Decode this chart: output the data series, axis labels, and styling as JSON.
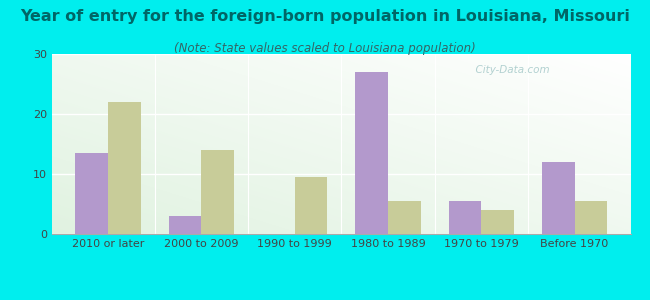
{
  "title": "Year of entry for the foreign-born population in Louisiana, Missouri",
  "subtitle": "(Note: State values scaled to Louisiana population)",
  "categories": [
    "2010 or later",
    "2000 to 2009",
    "1990 to 1999",
    "1980 to 1989",
    "1970 to 1979",
    "Before 1970"
  ],
  "louisiana_values": [
    13.5,
    3.0,
    0,
    27.0,
    5.5,
    12.0
  ],
  "missouri_values": [
    22.0,
    14.0,
    9.5,
    5.5,
    4.0,
    5.5
  ],
  "louisiana_color": "#b399cc",
  "missouri_color": "#c8cc99",
  "background_color": "#00eeee",
  "ylim": [
    0,
    30
  ],
  "yticks": [
    0,
    10,
    20,
    30
  ],
  "bar_width": 0.35,
  "title_fontsize": 11.5,
  "subtitle_fontsize": 8.5,
  "tick_fontsize": 8.0,
  "legend_fontsize": 9,
  "title_color": "#006666",
  "subtitle_color": "#336666",
  "watermark_text": "  City-Data.com",
  "watermark_color": "#aacccc"
}
